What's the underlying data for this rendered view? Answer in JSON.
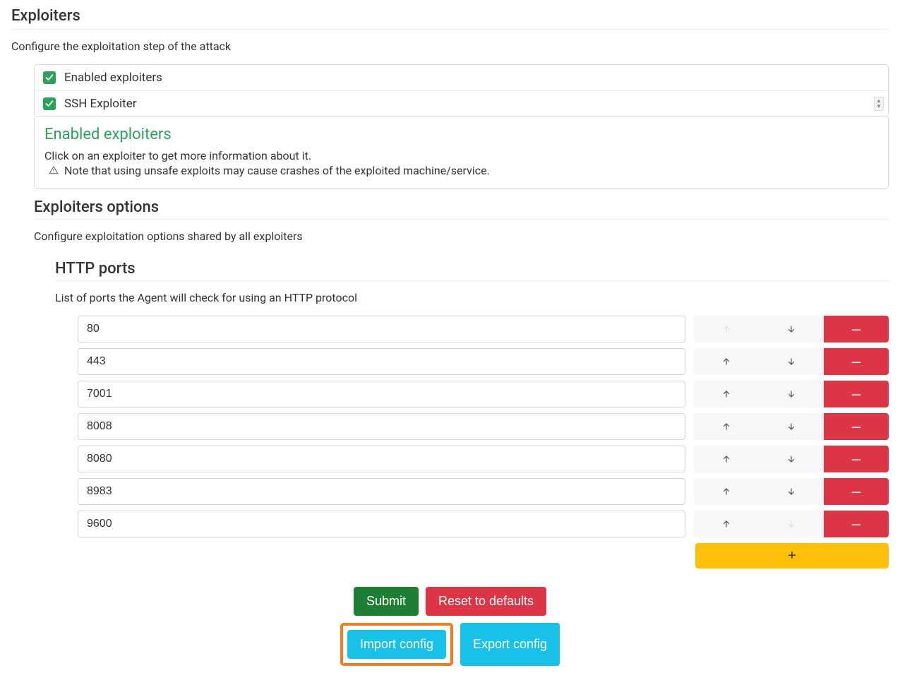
{
  "exploiters": {
    "title": "Exploiters",
    "desc": "Configure the exploitation step of the attack",
    "enabled_label": "Enabled exploiters",
    "enabled_checked": true,
    "item_label": "SSH Exploiter",
    "item_checked": true,
    "info_title": "Enabled exploiters",
    "info_body": "Click on an exploiter to get more information about it.",
    "info_note": "Note that using unsafe exploits may cause crashes of the exploited machine/service."
  },
  "options": {
    "title": "Exploiters options",
    "desc": "Configure exploitation options shared by all exploiters",
    "http_ports_title": "HTTP ports",
    "http_ports_desc": "List of ports the Agent will check for using an HTTP protocol",
    "ports": [
      "80",
      "443",
      "7001",
      "8008",
      "8080",
      "8983",
      "9600"
    ]
  },
  "buttons": {
    "submit": "Submit",
    "reset": "Reset to defaults",
    "import": "Import config",
    "export": "Export config",
    "add": "+",
    "remove": "–"
  },
  "colors": {
    "green": "#1e7e34",
    "danger": "#dc3545",
    "cyan": "#17c1e8",
    "amber": "#ffc107",
    "checkbox": "#2aa35a",
    "highlight": "#f47b20"
  }
}
